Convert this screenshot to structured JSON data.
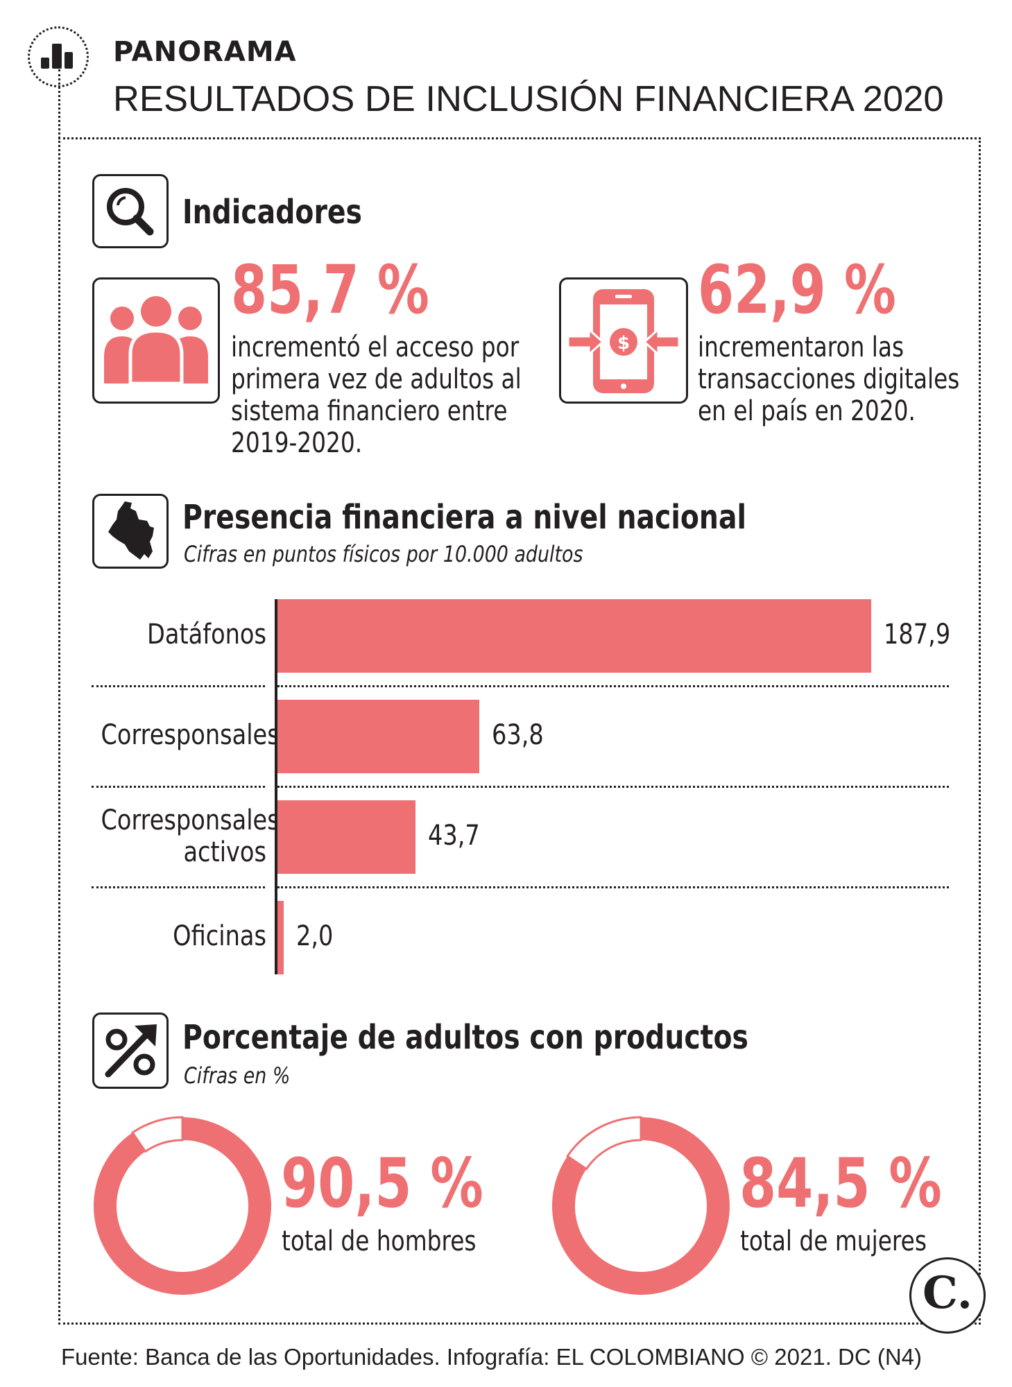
{
  "header": {
    "kicker": "PANORAMA",
    "title": "RESULTADOS DE INCLUSIÓN FINANCIERA 2020",
    "icon": "bar-chart-icon"
  },
  "indicators": {
    "title": "Indicadores",
    "icon": "magnifier-icon",
    "items": [
      {
        "value": "85,7 %",
        "icon": "people-icon",
        "lines": [
          "incrementó el acceso por",
          "primera vez de adultos al",
          "sistema financiero entre",
          "2019-2020."
        ]
      },
      {
        "value": "62,9 %",
        "icon": "phone-money-icon",
        "lines": [
          "incrementaron las",
          "transacciones digitales",
          "en el país en 2020."
        ]
      }
    ]
  },
  "presence": {
    "title": "Presencia financiera a nivel nacional",
    "subtitle": "Cifras en puntos físicos por 10.000 adultos",
    "icon": "colombia-map-icon"
  },
  "products": {
    "title": "Porcentaje de adultos con productos",
    "subtitle": "Cifras en %",
    "icon": "percent-arrow-icon",
    "items": [
      {
        "value": "90,5 %",
        "label": "total de hombres"
      },
      {
        "value": "84,5 %",
        "label": "total de mujeres"
      }
    ]
  },
  "footer": {
    "source": "Fuente: Banca de las Oportunidades. Infografía: EL COLOMBIANO © 2021. DC (N4)",
    "logo": "C."
  },
  "colors": {
    "accent": "#ee7072",
    "ink": "#231f20",
    "ring_rest": "#ffffff"
  },
  "chart_data": [
    {
      "type": "bar",
      "orientation": "horizontal",
      "categories": [
        [
          "Datáfonos"
        ],
        [
          "Corresponsales"
        ],
        [
          "Corresponsales",
          "activos"
        ],
        [
          "Oficinas"
        ]
      ],
      "values": [
        187.9,
        63.8,
        43.7,
        2.0
      ],
      "value_labels": [
        "187,9",
        "63,8",
        "43,7",
        "2,0"
      ],
      "xlim": [
        0,
        187.9
      ]
    },
    {
      "type": "pie",
      "style": "donut",
      "series": [
        {
          "values": [
            90.5,
            9.5
          ]
        },
        {
          "values": [
            84.5,
            15.5
          ]
        }
      ]
    }
  ]
}
